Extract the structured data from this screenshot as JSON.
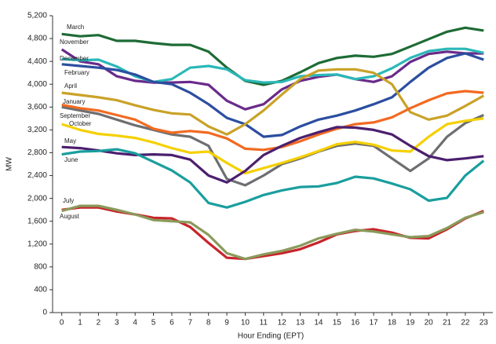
{
  "chart_data": {
    "type": "line",
    "x_label": "Hour Ending (EPT)",
    "y_label": "MW",
    "x": [
      0,
      1,
      2,
      3,
      4,
      5,
      6,
      7,
      8,
      9,
      10,
      11,
      12,
      13,
      14,
      15,
      16,
      17,
      18,
      19,
      20,
      21,
      22,
      23
    ],
    "xlim": [
      -0.5,
      23.5
    ],
    "xticks": [
      0,
      1,
      2,
      3,
      4,
      5,
      6,
      7,
      8,
      9,
      10,
      11,
      12,
      13,
      14,
      15,
      16,
      17,
      18,
      19,
      20,
      21,
      22,
      23
    ],
    "ylim": [
      0,
      5200
    ],
    "yticks": [
      0,
      400,
      800,
      {
        "value": 1200,
        "label": "1,200"
      },
      {
        "value": 1600,
        "label": "1,600"
      },
      {
        "value": 2000,
        "label": "2,000"
      },
      {
        "value": 2400,
        "label": "2,400"
      },
      {
        "value": 2800,
        "label": "2,800"
      },
      {
        "value": 3200,
        "label": "3,200"
      },
      {
        "value": 3600,
        "label": "3,600"
      },
      {
        "value": 4000,
        "label": "4,000"
      },
      {
        "value": 4400,
        "label": "4,400"
      },
      {
        "value": 4800,
        "label": "4,800"
      },
      {
        "value": 5200,
        "label": "5,200"
      }
    ],
    "series": [
      {
        "name": "March",
        "color": "#1e6b35",
        "values": [
          4880,
          4840,
          4860,
          4760,
          4760,
          4720,
          4690,
          4690,
          4570,
          4290,
          4060,
          3990,
          4060,
          4210,
          4370,
          4460,
          4500,
          4480,
          4530,
          4660,
          4790,
          4920,
          4990,
          4940
        ]
      },
      {
        "name": "November",
        "color": "#6a2a8a",
        "values": [
          4610,
          4400,
          4350,
          4140,
          4060,
          4030,
          4030,
          4040,
          3990,
          3710,
          3560,
          3650,
          3910,
          4060,
          4130,
          4170,
          4090,
          4040,
          4140,
          4390,
          4530,
          4570,
          4540,
          4540
        ]
      },
      {
        "name": "December",
        "color": "#2ab8b8",
        "values": [
          4440,
          4420,
          4430,
          4310,
          4140,
          4040,
          4090,
          4290,
          4320,
          4260,
          4070,
          4030,
          4040,
          4140,
          4160,
          4170,
          4090,
          4140,
          4280,
          4460,
          4580,
          4620,
          4620,
          4550
        ]
      },
      {
        "name": "February",
        "color": "#2b4ea0",
        "values": [
          4350,
          4320,
          4290,
          4250,
          4170,
          4040,
          4000,
          3850,
          3650,
          3410,
          3300,
          3080,
          3110,
          3260,
          3380,
          3450,
          3540,
          3650,
          3770,
          4040,
          4290,
          4460,
          4540,
          4430
        ]
      },
      {
        "name": "April",
        "color": "#c9a227",
        "values": [
          3850,
          3810,
          3770,
          3720,
          3630,
          3550,
          3490,
          3470,
          3260,
          3120,
          3300,
          3540,
          3820,
          4090,
          4240,
          4260,
          4260,
          4200,
          4000,
          3510,
          3380,
          3450,
          3620,
          3800
        ]
      },
      {
        "name": "January",
        "color": "#6d6e71",
        "values": [
          3600,
          3540,
          3480,
          3380,
          3280,
          3200,
          3120,
          3080,
          2920,
          2340,
          2230,
          2400,
          2600,
          2700,
          2820,
          2920,
          2960,
          2920,
          2700,
          2480,
          2700,
          3080,
          3320,
          3460
        ]
      },
      {
        "name": "September",
        "color": "#f26a21",
        "values": [
          3640,
          3580,
          3540,
          3460,
          3380,
          3220,
          3150,
          3180,
          3150,
          3050,
          2870,
          2850,
          2900,
          3000,
          3120,
          3220,
          3300,
          3330,
          3420,
          3580,
          3720,
          3840,
          3880,
          3850
        ]
      },
      {
        "name": "October",
        "color": "#f5d000",
        "values": [
          3300,
          3200,
          3130,
          3100,
          3060,
          2980,
          2880,
          2800,
          2820,
          2620,
          2440,
          2530,
          2620,
          2720,
          2830,
          2950,
          2990,
          2940,
          2840,
          2820,
          3080,
          3300,
          3360,
          3400
        ]
      },
      {
        "name": "May",
        "color": "#4b1f6f",
        "values": [
          2900,
          2880,
          2840,
          2790,
          2760,
          2770,
          2760,
          2680,
          2400,
          2280,
          2480,
          2760,
          2920,
          3060,
          3160,
          3250,
          3240,
          3200,
          3120,
          2920,
          2740,
          2670,
          2700,
          2740
        ]
      },
      {
        "name": "June",
        "color": "#1a9e9e",
        "values": [
          2770,
          2820,
          2830,
          2860,
          2790,
          2640,
          2490,
          2280,
          1920,
          1840,
          1940,
          2060,
          2140,
          2200,
          2210,
          2270,
          2380,
          2350,
          2260,
          2160,
          1960,
          2010,
          2400,
          2660
        ]
      },
      {
        "name": "July",
        "color": "#c8242b",
        "values": [
          1800,
          1840,
          1840,
          1770,
          1720,
          1660,
          1650,
          1500,
          1220,
          960,
          940,
          990,
          1040,
          1110,
          1230,
          1370,
          1430,
          1460,
          1400,
          1310,
          1300,
          1460,
          1650,
          1780
        ]
      },
      {
        "name": "August",
        "color": "#8a9a5b",
        "values": [
          1780,
          1870,
          1870,
          1800,
          1720,
          1620,
          1600,
          1580,
          1360,
          1040,
          940,
          1020,
          1080,
          1170,
          1300,
          1380,
          1450,
          1420,
          1370,
          1320,
          1340,
          1480,
          1660,
          1760
        ]
      }
    ]
  }
}
